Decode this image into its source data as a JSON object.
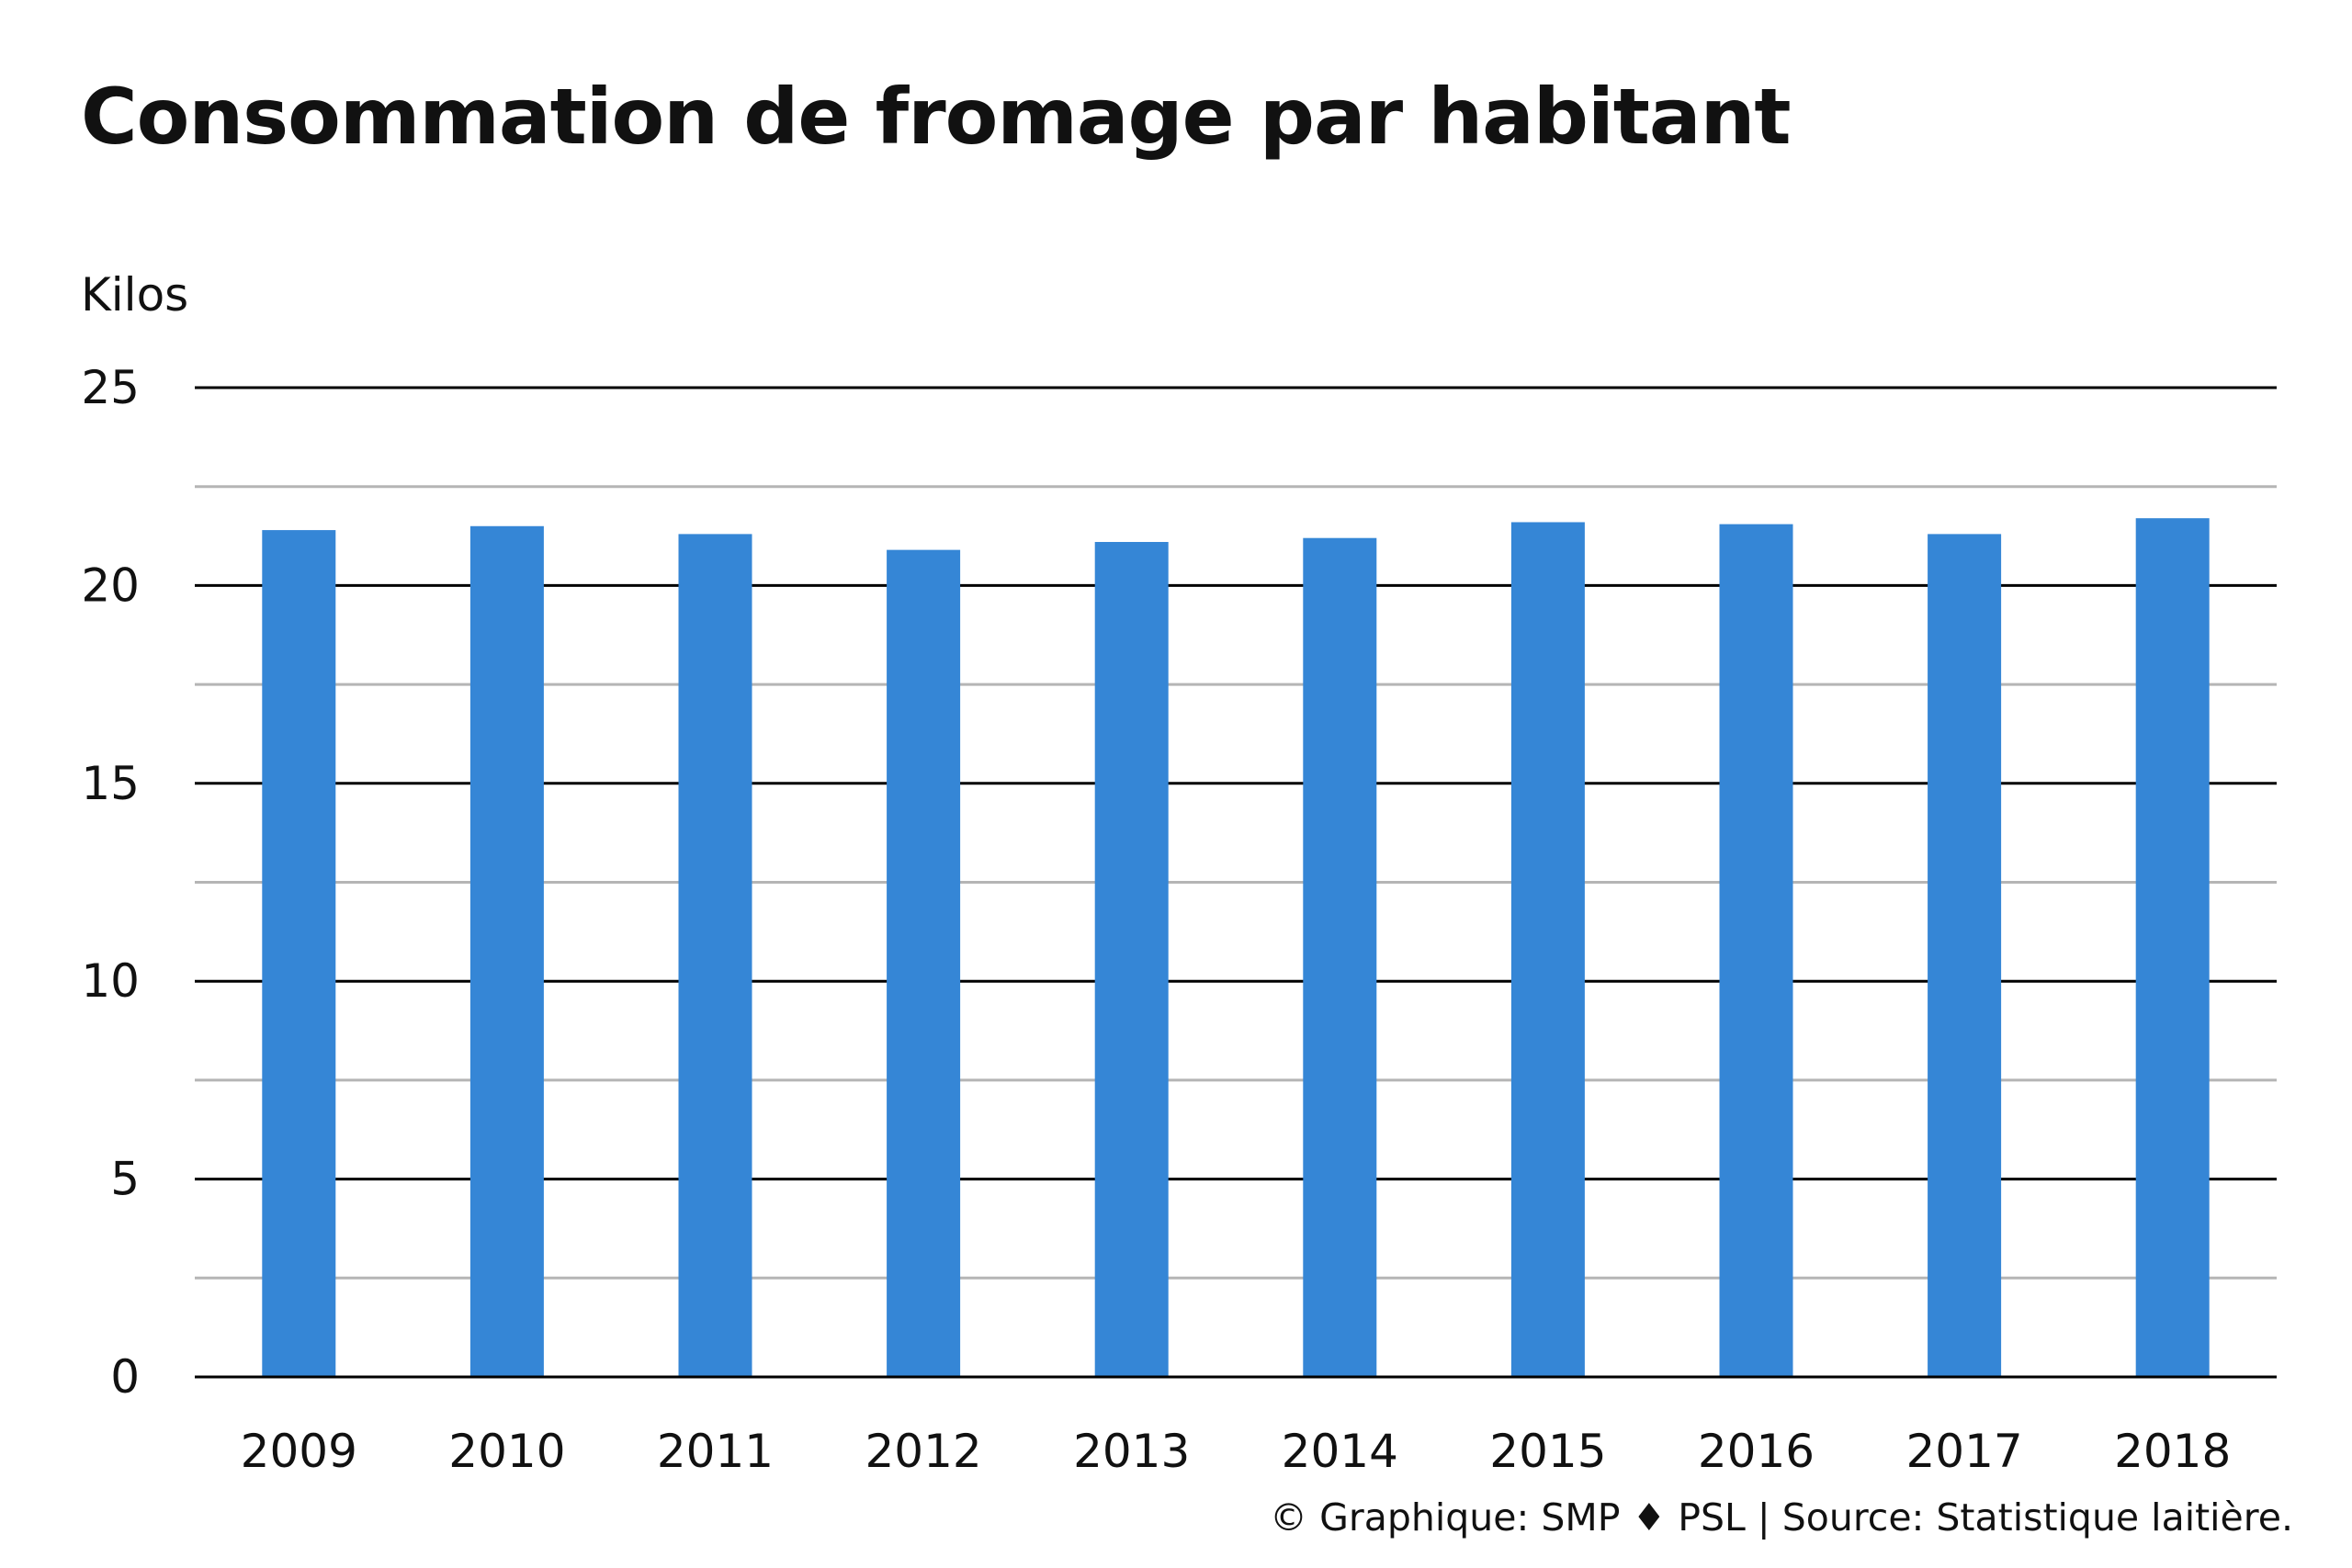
{
  "chart_data": {
    "type": "bar",
    "title": "Consommation de fromage par habitant",
    "ylabel": "Kilos",
    "xlabel": "",
    "categories": [
      "2009",
      "2010",
      "2011",
      "2012",
      "2013",
      "2014",
      "2015",
      "2016",
      "2017",
      "2018"
    ],
    "values": [
      21.4,
      21.5,
      21.3,
      20.9,
      21.1,
      21.2,
      21.6,
      21.55,
      21.3,
      21.7
    ],
    "ylim": [
      0,
      25
    ],
    "yticks": [
      0,
      5,
      10,
      15,
      20,
      25
    ],
    "grid": true,
    "bar_color": "#3586d6",
    "major_grid_color": "#000000",
    "minor_grid_color": "#b5b5b5"
  },
  "footer": {
    "credit": "© Graphique: SMP ♦ PSL | Source: Statistique laitière."
  }
}
